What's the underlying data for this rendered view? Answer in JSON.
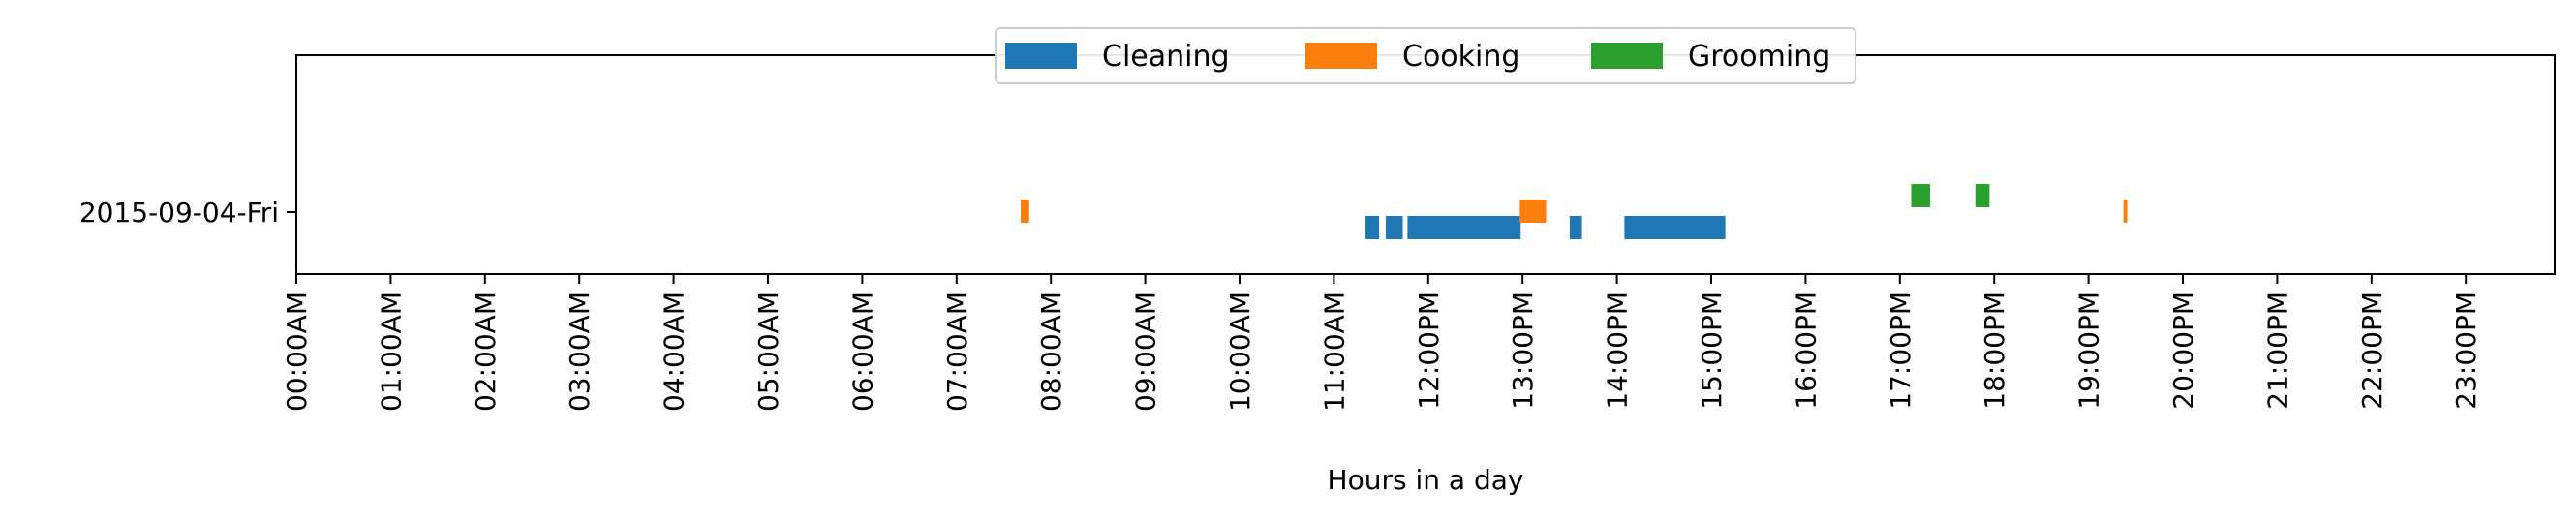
{
  "chart_data": {
    "type": "bar",
    "orientation": "horizontal-timeline",
    "xlabel": "Hours in a day",
    "ylabel": "",
    "xlim": [
      0,
      24
    ],
    "categories": [
      "2015-09-04-Fri"
    ],
    "x_ticks": [
      {
        "value": 0,
        "label": "00:00AM"
      },
      {
        "value": 1,
        "label": "01:00AM"
      },
      {
        "value": 2,
        "label": "02:00AM"
      },
      {
        "value": 3,
        "label": "03:00AM"
      },
      {
        "value": 4,
        "label": "04:00AM"
      },
      {
        "value": 5,
        "label": "05:00AM"
      },
      {
        "value": 6,
        "label": "06:00AM"
      },
      {
        "value": 7,
        "label": "07:00AM"
      },
      {
        "value": 8,
        "label": "08:00AM"
      },
      {
        "value": 9,
        "label": "09:00AM"
      },
      {
        "value": 10,
        "label": "10:00AM"
      },
      {
        "value": 11,
        "label": "11:00AM"
      },
      {
        "value": 12,
        "label": "12:00PM"
      },
      {
        "value": 13,
        "label": "13:00PM"
      },
      {
        "value": 14,
        "label": "14:00PM"
      },
      {
        "value": 15,
        "label": "15:00PM"
      },
      {
        "value": 16,
        "label": "16:00PM"
      },
      {
        "value": 17,
        "label": "17:00PM"
      },
      {
        "value": 18,
        "label": "18:00PM"
      },
      {
        "value": 19,
        "label": "19:00PM"
      },
      {
        "value": 20,
        "label": "20:00PM"
      },
      {
        "value": 21,
        "label": "21:00PM"
      },
      {
        "value": 22,
        "label": "22:00PM"
      },
      {
        "value": 23,
        "label": "23:00PM"
      }
    ],
    "legend": {
      "placement": "top-center"
    },
    "grid": false,
    "series": [
      {
        "name": "Cleaning",
        "color": "#1f77b4",
        "lane": "lower",
        "intervals": [
          {
            "start": 11.33,
            "end": 11.48
          },
          {
            "start": 11.55,
            "end": 11.73
          },
          {
            "start": 11.78,
            "end": 12.98
          },
          {
            "start": 13.5,
            "end": 13.63
          },
          {
            "start": 14.08,
            "end": 15.15
          }
        ]
      },
      {
        "name": "Cooking",
        "color": "#ff7f0e",
        "lane": "middle",
        "intervals": [
          {
            "start": 7.68,
            "end": 7.77
          },
          {
            "start": 12.97,
            "end": 13.25
          },
          {
            "start": 19.37,
            "end": 19.41
          }
        ]
      },
      {
        "name": "Grooming",
        "color": "#2ca02c",
        "lane": "upper",
        "intervals": [
          {
            "start": 17.12,
            "end": 17.32
          },
          {
            "start": 17.8,
            "end": 17.95
          }
        ]
      }
    ]
  }
}
